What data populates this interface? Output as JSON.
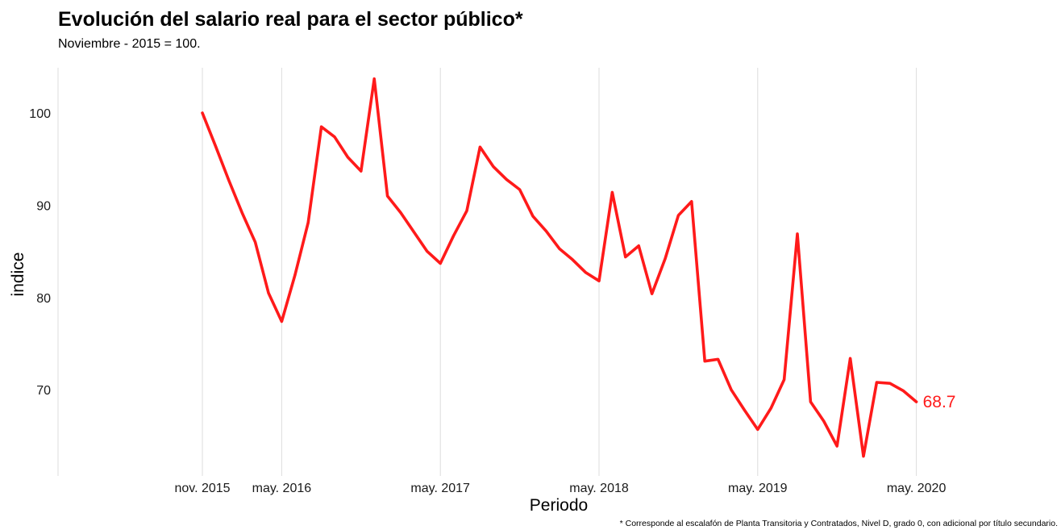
{
  "chart_data": {
    "type": "line",
    "title": "Evolución del salario real para el sector público*",
    "subtitle": "Noviembre - 2015 = 100.",
    "xlabel": "Periodo",
    "ylabel": "indice",
    "footnote": "* Corresponde al escalafón de Planta Transitoria y Contratados, Nivel D, grado 0, con adicional por título secundario.",
    "x_tick_labels": [
      "nov. 2015",
      "may. 2016",
      "may. 2017",
      "may. 2018",
      "may. 2019",
      "may. 2020"
    ],
    "y_ticks": [
      70,
      80,
      90,
      100
    ],
    "ylim": [
      61,
      105
    ],
    "grid": "vertical only",
    "line_color": "#ff1a1a",
    "end_label": "68.7",
    "series": [
      {
        "x": [
          "2015-11",
          "2015-12",
          "2016-01",
          "2016-02",
          "2016-03",
          "2016-04",
          "2016-05",
          "2016-06",
          "2016-07",
          "2016-08",
          "2016-09",
          "2016-10",
          "2016-11",
          "2016-12",
          "2017-01",
          "2017-02",
          "2017-03",
          "2017-04",
          "2017-05",
          "2017-06",
          "2017-07",
          "2017-08",
          "2017-09",
          "2017-10",
          "2017-11",
          "2017-12",
          "2018-01",
          "2018-02",
          "2018-03",
          "2018-04",
          "2018-05",
          "2018-06",
          "2018-07",
          "2018-08",
          "2018-09",
          "2018-10",
          "2018-11",
          "2018-12",
          "2019-01",
          "2019-02",
          "2019-03",
          "2019-04",
          "2019-05",
          "2019-06",
          "2019-07",
          "2019-08",
          "2019-09",
          "2019-10",
          "2019-11",
          "2019-12",
          "2020-01",
          "2020-02",
          "2020-03",
          "2020-04",
          "2020-05"
        ],
        "values": [
          100,
          96.4,
          92.7,
          89.2,
          86,
          80.5,
          77.4,
          82.4,
          88.1,
          98.5,
          97.4,
          95.2,
          93.7,
          103.7,
          91,
          89.2,
          87.1,
          85,
          83.7,
          86.7,
          89.4,
          96.3,
          94.2,
          92.8,
          91.7,
          88.8,
          87.2,
          85.3,
          84.1,
          82.7,
          81.8,
          91.4,
          84.4,
          85.6,
          80.4,
          84.2,
          88.9,
          90.4,
          73.1,
          73.3,
          70,
          67.8,
          65.7,
          68,
          71.1,
          86.9,
          68.7,
          66.6,
          63.9,
          73.4,
          62.8,
          70.8,
          70.7,
          69.9,
          68.7
        ]
      }
    ]
  }
}
